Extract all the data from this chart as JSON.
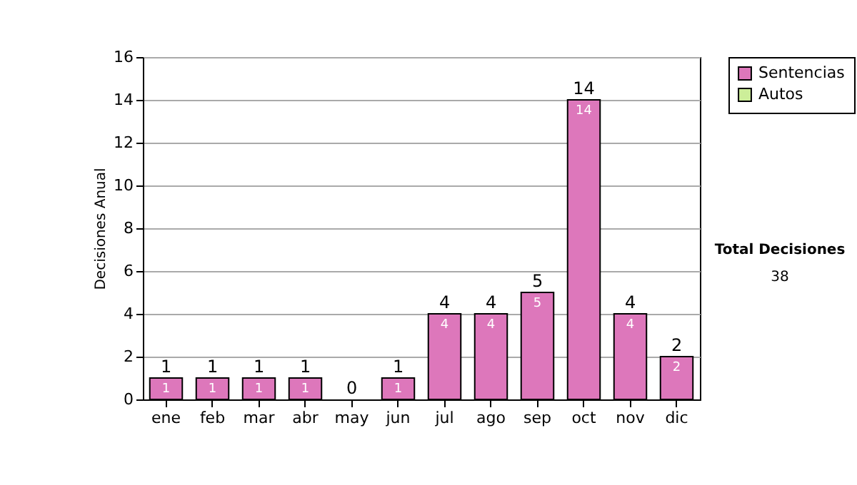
{
  "chart_data": {
    "type": "bar",
    "stacked": true,
    "ylabel": "Decisiones Anual",
    "categories": [
      "ene",
      "feb",
      "mar",
      "abr",
      "may",
      "jun",
      "jul",
      "ago",
      "sep",
      "oct",
      "nov",
      "dic"
    ],
    "series": [
      {
        "name": "Sentencias",
        "color": "#dd77bb",
        "values": [
          1,
          1,
          1,
          1,
          0,
          1,
          4,
          4,
          5,
          14,
          4,
          2
        ],
        "value_labels": [
          "1",
          "1",
          "1",
          "1",
          null,
          "1",
          "4",
          "4",
          "5",
          "14",
          "4",
          "2"
        ]
      },
      {
        "name": "Autos",
        "color": "#ccee99",
        "values": [
          0,
          0,
          0,
          0,
          0,
          0,
          0,
          0,
          0,
          0,
          0,
          0
        ]
      }
    ],
    "totals": [
      "1",
      "1",
      "1",
      "1",
      "0",
      "1",
      "4",
      "4",
      "5",
      "14",
      "4",
      "2"
    ],
    "ylim": [
      0,
      16
    ],
    "yticks": [
      0,
      2,
      4,
      6,
      8,
      10,
      12,
      14,
      16
    ],
    "grid": "y",
    "legend": "right",
    "annotations": [
      "Total Decisiones",
      "38"
    ]
  }
}
